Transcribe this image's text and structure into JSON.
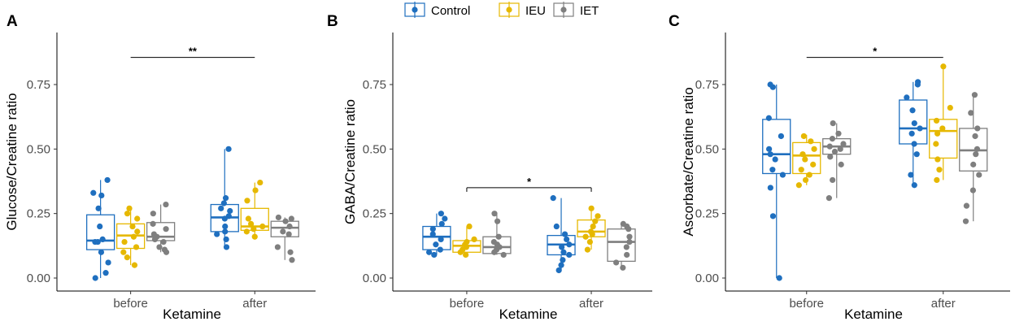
{
  "legend": [
    {
      "name": "Control",
      "color": "#1f6fbf"
    },
    {
      "name": "IEU",
      "color": "#e6b800"
    },
    {
      "name": "IET",
      "color": "#7f7f7f"
    }
  ],
  "chart_data": [
    {
      "type": "box",
      "panel": "A",
      "xlabel": "Ketamine",
      "ylabel": "Glucose/Creatine ratio",
      "categories": [
        "before",
        "after"
      ],
      "ylim": [
        0,
        0.95
      ],
      "yticks": [
        "0.00",
        "0.25",
        "0.50",
        "0.75"
      ],
      "significance": {
        "label": "**",
        "y": 0.855,
        "from": "before",
        "to": "after"
      },
      "series": [
        {
          "name": "Control",
          "boxes": [
            {
              "cat": "before",
              "min": 0.0,
              "q1": 0.11,
              "median": 0.145,
              "q3": 0.245,
              "max": 0.38,
              "points": [
                0.38,
                0.33,
                0.32,
                0.27,
                0.2,
                0.15,
                0.14,
                0.14,
                0.1,
                0.06,
                0.02,
                0.0
              ]
            },
            {
              "cat": "after",
              "min": 0.12,
              "q1": 0.18,
              "median": 0.235,
              "q3": 0.285,
              "max": 0.5,
              "points": [
                0.5,
                0.31,
                0.29,
                0.27,
                0.26,
                0.24,
                0.23,
                0.2,
                0.18,
                0.17,
                0.15,
                0.12
              ]
            }
          ]
        },
        {
          "name": "IEU",
          "boxes": [
            {
              "cat": "before",
              "min": 0.05,
              "q1": 0.115,
              "median": 0.165,
              "q3": 0.21,
              "max": 0.265,
              "points": [
                0.27,
                0.25,
                0.23,
                0.2,
                0.18,
                0.16,
                0.14,
                0.12,
                0.1,
                0.08,
                0.05
              ]
            },
            {
              "cat": "after",
              "min": 0.16,
              "q1": 0.185,
              "median": 0.2,
              "q3": 0.27,
              "max": 0.37,
              "points": [
                0.37,
                0.34,
                0.3,
                0.23,
                0.21,
                0.2,
                0.19,
                0.18,
                0.16
              ]
            }
          ]
        },
        {
          "name": "IET",
          "boxes": [
            {
              "cat": "before",
              "min": 0.1,
              "q1": 0.145,
              "median": 0.16,
              "q3": 0.215,
              "max": 0.285,
              "points": [
                0.285,
                0.25,
                0.21,
                0.19,
                0.17,
                0.16,
                0.15,
                0.14,
                0.12,
                0.11,
                0.1
              ]
            },
            {
              "cat": "after",
              "min": 0.07,
              "q1": 0.16,
              "median": 0.195,
              "q3": 0.22,
              "max": 0.235,
              "points": [
                0.235,
                0.23,
                0.22,
                0.2,
                0.18,
                0.17,
                0.12,
                0.1,
                0.07
              ]
            }
          ]
        }
      ]
    },
    {
      "type": "box",
      "panel": "B",
      "xlabel": "Ketamine",
      "ylabel": "GABA/Creatine ratio",
      "categories": [
        "before",
        "after"
      ],
      "ylim": [
        0,
        0.95
      ],
      "yticks": [
        "0.00",
        "0.25",
        "0.50",
        "0.75"
      ],
      "significance": {
        "label": "*",
        "y": 0.35,
        "from": "before",
        "to": "after"
      },
      "series": [
        {
          "name": "Control",
          "boxes": [
            {
              "cat": "before",
              "min": 0.09,
              "q1": 0.11,
              "median": 0.16,
              "q3": 0.2,
              "max": 0.25,
              "points": [
                0.25,
                0.23,
                0.21,
                0.19,
                0.17,
                0.15,
                0.13,
                0.11,
                0.1,
                0.09
              ]
            },
            {
              "cat": "after",
              "min": 0.03,
              "q1": 0.09,
              "median": 0.13,
              "q3": 0.165,
              "max": 0.31,
              "points": [
                0.31,
                0.2,
                0.17,
                0.15,
                0.13,
                0.12,
                0.1,
                0.09,
                0.07,
                0.05,
                0.03
              ]
            }
          ]
        },
        {
          "name": "IEU",
          "boxes": [
            {
              "cat": "before",
              "min": 0.09,
              "q1": 0.1,
              "median": 0.125,
              "q3": 0.145,
              "max": 0.2,
              "points": [
                0.2,
                0.15,
                0.14,
                0.13,
                0.12,
                0.11,
                0.1,
                0.09
              ]
            },
            {
              "cat": "after",
              "min": 0.11,
              "q1": 0.16,
              "median": 0.18,
              "q3": 0.225,
              "max": 0.27,
              "points": [
                0.27,
                0.24,
                0.22,
                0.2,
                0.18,
                0.17,
                0.16,
                0.14,
                0.11
              ]
            }
          ]
        },
        {
          "name": "IET",
          "boxes": [
            {
              "cat": "before",
              "min": 0.09,
              "q1": 0.095,
              "median": 0.12,
              "q3": 0.16,
              "max": 0.25,
              "points": [
                0.25,
                0.22,
                0.16,
                0.14,
                0.13,
                0.12,
                0.11,
                0.1,
                0.09
              ]
            },
            {
              "cat": "after",
              "min": 0.04,
              "q1": 0.065,
              "median": 0.14,
              "q3": 0.19,
              "max": 0.21,
              "points": [
                0.21,
                0.2,
                0.19,
                0.16,
                0.14,
                0.12,
                0.09,
                0.06,
                0.04
              ]
            }
          ]
        }
      ]
    },
    {
      "type": "box",
      "panel": "C",
      "xlabel": "Ketamine",
      "ylabel": "Ascorbate/Creatine ratio",
      "categories": [
        "before",
        "after"
      ],
      "ylim": [
        0,
        0.95
      ],
      "yticks": [
        "0.00",
        "0.25",
        "0.50",
        "0.75"
      ],
      "significance": {
        "label": "*",
        "y": 0.855,
        "from": "before",
        "to": "after"
      },
      "series": [
        {
          "name": "Control",
          "boxes": [
            {
              "cat": "before",
              "min": 0.0,
              "q1": 0.405,
              "median": 0.48,
              "q3": 0.615,
              "max": 0.75,
              "points": [
                0.75,
                0.74,
                0.62,
                0.55,
                0.5,
                0.48,
                0.46,
                0.42,
                0.4,
                0.35,
                0.24,
                0.0
              ]
            },
            {
              "cat": "after",
              "min": 0.36,
              "q1": 0.52,
              "median": 0.58,
              "q3": 0.69,
              "max": 0.76,
              "points": [
                0.76,
                0.75,
                0.7,
                0.65,
                0.6,
                0.58,
                0.56,
                0.52,
                0.48,
                0.4,
                0.36
              ]
            }
          ]
        },
        {
          "name": "IEU",
          "boxes": [
            {
              "cat": "before",
              "min": 0.36,
              "q1": 0.405,
              "median": 0.475,
              "q3": 0.525,
              "max": 0.555,
              "points": [
                0.55,
                0.53,
                0.5,
                0.48,
                0.46,
                0.44,
                0.42,
                0.4,
                0.38,
                0.36
              ]
            },
            {
              "cat": "after",
              "min": 0.38,
              "q1": 0.465,
              "median": 0.57,
              "q3": 0.615,
              "max": 0.82,
              "points": [
                0.82,
                0.66,
                0.61,
                0.58,
                0.56,
                0.52,
                0.46,
                0.42,
                0.38
              ]
            }
          ]
        },
        {
          "name": "IET",
          "boxes": [
            {
              "cat": "before",
              "min": 0.31,
              "q1": 0.48,
              "median": 0.51,
              "q3": 0.54,
              "max": 0.6,
              "points": [
                0.6,
                0.56,
                0.54,
                0.52,
                0.51,
                0.5,
                0.49,
                0.47,
                0.44,
                0.38,
                0.31
              ]
            },
            {
              "cat": "after",
              "min": 0.22,
              "q1": 0.415,
              "median": 0.495,
              "q3": 0.58,
              "max": 0.71,
              "points": [
                0.71,
                0.64,
                0.58,
                0.55,
                0.5,
                0.48,
                0.44,
                0.4,
                0.34,
                0.28,
                0.22
              ]
            }
          ]
        }
      ]
    }
  ]
}
